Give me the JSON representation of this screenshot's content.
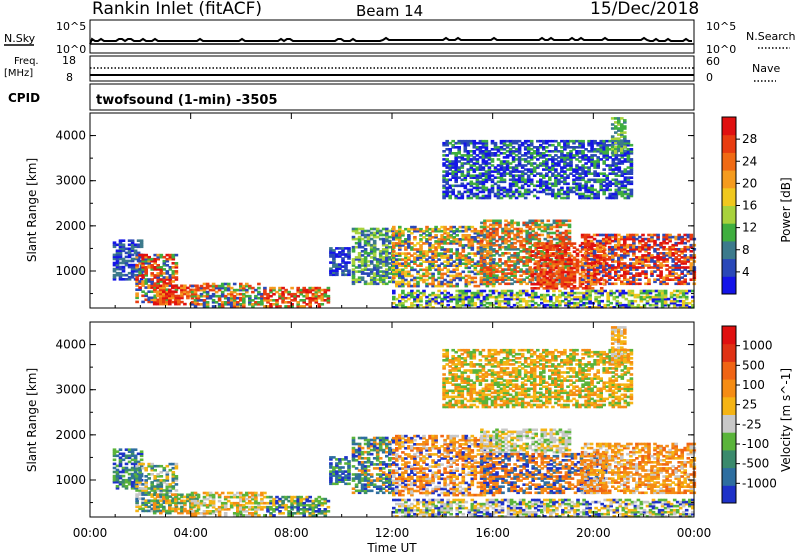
{
  "header": {
    "site": "Rankin Inlet (fitACF)",
    "beam": "Beam 14",
    "date": "15/Dec/2018"
  },
  "strip_labels": {
    "nsky": "N.Sky",
    "nsky_hi": "10^5",
    "nsky_lo": "10^0",
    "nsearch": "N.Search",
    "nsearch_hi": "10^5",
    "nsearch_lo": "10^0",
    "freq": "Freq.",
    "freq_unit": "[MHz]",
    "freq_hi": "18",
    "freq_lo": "8",
    "nave": "Nave",
    "nave_hi": "60",
    "nave_lo": "0",
    "cpid": "CPID",
    "cpid_text": "twofsound (1-min) -3505"
  },
  "chart_data": [
    {
      "type": "heatmap",
      "panel": "power",
      "ylabel": "Slant Range [km]",
      "xlabel": "Time UT",
      "x_ticks": [
        "00:00",
        "04:00",
        "08:00",
        "12:00",
        "16:00",
        "20:00",
        "00:00"
      ],
      "x_range_hours": [
        0,
        24
      ],
      "y_ticks": [
        1000,
        2000,
        3000,
        4000
      ],
      "y_range_km": [
        180,
        4500
      ],
      "colorbar": {
        "label": "Power [dB]",
        "ticks": [
          "4",
          "8",
          "12",
          "16",
          "20",
          "24",
          "28"
        ],
        "colors": [
          "#1414e8",
          "#2a48b8",
          "#3c7a8c",
          "#3fae3f",
          "#a8d23c",
          "#f0c81e",
          "#f59b1e",
          "#f06a14",
          "#e83c10",
          "#e01010"
        ]
      },
      "regions": [
        {
          "t0": 0.9,
          "t1": 2.0,
          "r0": 800,
          "r1": 1700,
          "c": [
            0,
            1,
            2
          ]
        },
        {
          "t0": 1.8,
          "t1": 3.4,
          "r0": 300,
          "r1": 1350,
          "c": [
            1,
            3,
            6,
            8,
            9
          ]
        },
        {
          "t0": 2.5,
          "t1": 4.2,
          "r0": 250,
          "r1": 700,
          "c": [
            6,
            8,
            9,
            7
          ]
        },
        {
          "t0": 4.0,
          "t1": 7.0,
          "r0": 200,
          "r1": 700,
          "c": [
            1,
            3,
            6,
            8
          ]
        },
        {
          "t0": 7.0,
          "t1": 9.5,
          "r0": 200,
          "r1": 650,
          "c": [
            3,
            6,
            8,
            9
          ]
        },
        {
          "t0": 9.5,
          "t1": 10.3,
          "r0": 900,
          "r1": 1500,
          "c": [
            0,
            1,
            2
          ]
        },
        {
          "t0": 10.4,
          "t1": 12.0,
          "r0": 700,
          "r1": 1950,
          "c": [
            1,
            2,
            3,
            4
          ]
        },
        {
          "t0": 12.0,
          "t1": 16.0,
          "r0": 650,
          "r1": 2000,
          "c": [
            1,
            3,
            5,
            6,
            7
          ]
        },
        {
          "t0": 15.5,
          "t1": 19.0,
          "r0": 700,
          "r1": 2100,
          "c": [
            2,
            3,
            6,
            7,
            8
          ]
        },
        {
          "t0": 17.5,
          "t1": 20.5,
          "r0": 600,
          "r1": 1600,
          "c": [
            7,
            8,
            9
          ]
        },
        {
          "t0": 19.5,
          "t1": 24.0,
          "r0": 700,
          "r1": 1800,
          "c": [
            1,
            6,
            8,
            9
          ]
        },
        {
          "t0": 12.0,
          "t1": 24.0,
          "r0": 180,
          "r1": 550,
          "c": [
            3,
            4,
            5,
            0
          ]
        },
        {
          "t0": 14.0,
          "t1": 21.5,
          "r0": 2600,
          "r1": 3900,
          "c": [
            0,
            1,
            3
          ]
        },
        {
          "t0": 20.7,
          "t1": 21.2,
          "r0": 3600,
          "r1": 4400,
          "c": [
            2,
            3,
            4
          ]
        }
      ]
    },
    {
      "type": "heatmap",
      "panel": "velocity",
      "ylabel": "Slant Range [km]",
      "xlabel": "Time UT",
      "x_ticks": [
        "00:00",
        "04:00",
        "08:00",
        "12:00",
        "16:00",
        "20:00",
        "00:00"
      ],
      "x_range_hours": [
        0,
        24
      ],
      "y_ticks": [
        1000,
        2000,
        3000,
        4000
      ],
      "y_range_km": [
        180,
        4500
      ],
      "colorbar": {
        "label": "Velocity [m s^-1]",
        "ticks": [
          "1000",
          "500",
          "100",
          "25",
          "-25",
          "-100",
          "-500",
          "-1000"
        ],
        "colors": [
          "#1e32c8",
          "#2e6ea0",
          "#3a8a6c",
          "#5ab43a",
          "#c8c8c8",
          "#f5b414",
          "#f58c14",
          "#f06414",
          "#e03214",
          "#e01010"
        ]
      },
      "regions": [
        {
          "t0": 0.9,
          "t1": 2.0,
          "r0": 800,
          "r1": 1700,
          "c": [
            0,
            1,
            2,
            3
          ]
        },
        {
          "t0": 1.8,
          "t1": 3.4,
          "r0": 300,
          "r1": 1350,
          "c": [
            1,
            2,
            3,
            4,
            5
          ]
        },
        {
          "t0": 2.5,
          "t1": 4.2,
          "r0": 250,
          "r1": 700,
          "c": [
            2,
            3,
            5,
            6
          ]
        },
        {
          "t0": 4.0,
          "t1": 7.0,
          "r0": 200,
          "r1": 700,
          "c": [
            3,
            5,
            6,
            4
          ]
        },
        {
          "t0": 7.0,
          "t1": 9.5,
          "r0": 200,
          "r1": 650,
          "c": [
            3,
            2,
            5,
            0
          ]
        },
        {
          "t0": 9.5,
          "t1": 10.3,
          "r0": 900,
          "r1": 1500,
          "c": [
            0,
            1,
            3
          ]
        },
        {
          "t0": 10.4,
          "t1": 12.0,
          "r0": 700,
          "r1": 1950,
          "c": [
            0,
            1,
            2,
            3,
            6
          ]
        },
        {
          "t0": 12.0,
          "t1": 16.0,
          "r0": 650,
          "r1": 2000,
          "c": [
            6,
            7,
            6,
            5,
            4,
            0
          ]
        },
        {
          "t0": 15.5,
          "t1": 19.0,
          "r0": 1600,
          "r1": 2100,
          "c": [
            4,
            4,
            3,
            5
          ]
        },
        {
          "t0": 15.5,
          "t1": 20.5,
          "r0": 700,
          "r1": 1600,
          "c": [
            6,
            7,
            6,
            0,
            1
          ]
        },
        {
          "t0": 19.5,
          "t1": 24.0,
          "r0": 700,
          "r1": 1800,
          "c": [
            6,
            7,
            6,
            5,
            4
          ]
        },
        {
          "t0": 12.0,
          "t1": 24.0,
          "r0": 180,
          "r1": 550,
          "c": [
            4,
            5,
            3,
            0
          ]
        },
        {
          "t0": 14.0,
          "t1": 21.5,
          "r0": 2600,
          "r1": 3900,
          "c": [
            6,
            5,
            3
          ]
        },
        {
          "t0": 20.7,
          "t1": 21.2,
          "r0": 3600,
          "r1": 4400,
          "c": [
            5,
            6,
            4
          ]
        }
      ]
    }
  ]
}
